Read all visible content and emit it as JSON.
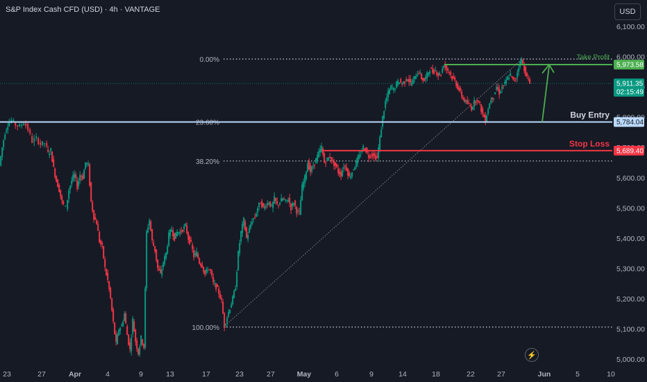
{
  "header": {
    "title": "S&P Index Cash CFD (USD) · 4h · VANTAGE"
  },
  "currency_button": "USD",
  "tools": {
    "bolt_icon": "lightning-icon"
  },
  "colors": {
    "background": "#161a25",
    "up": "#089981",
    "down": "#f23645",
    "take_profit": "#4caf50",
    "buy_entry": "#bbd9fb",
    "stop_loss": "#f23645",
    "last_price": "#089981"
  },
  "chart_data": {
    "type": "candlestick",
    "timeframe": "4h",
    "ylim": [
      4990,
      6140
    ],
    "y_ticks": [
      5000,
      5100,
      5200,
      5300,
      5400,
      5500,
      5600,
      5700,
      5800,
      5900,
      6000,
      6100
    ],
    "y_tick_labels": [
      "5,000.00",
      "5,100.00",
      "5,200.00",
      "5,300.00",
      "5,400.00",
      "5,500.00",
      "5,600.00",
      "5,700.00",
      "5,800.00",
      "5,900.00",
      "6,000.00",
      "6,100.00"
    ],
    "x_tick_labels": [
      "23",
      "27",
      "Apr",
      "4",
      "9",
      "13",
      "17",
      "23",
      "27",
      "May",
      "6",
      "9",
      "14",
      "18",
      "22",
      "27",
      "Jun",
      "5",
      "10"
    ],
    "price_tags": [
      {
        "label": "5,973.58",
        "value": 5973.58,
        "color": "#4caf50"
      },
      {
        "label": "5,911.35",
        "sub": "02:15:49",
        "value": 5911.35,
        "color": "#089981"
      },
      {
        "label": "5,784.04",
        "value": 5784.04,
        "color": "#bbd9fb"
      },
      {
        "label": "5,689.40",
        "value": 5689.4,
        "color": "#f23645"
      }
    ],
    "annotations": {
      "take_profit": {
        "label": "Take Profit",
        "value": 5973.58
      },
      "buy_entry": {
        "label": "Buy Entry",
        "value": 5784.04
      },
      "stop_loss": {
        "label": "Stop Loss",
        "value": 5689.4
      }
    },
    "fib_levels": [
      {
        "label": "0.00%",
        "value": 5992
      },
      {
        "label": "23.60%",
        "value": 5784
      },
      {
        "label": "38.20%",
        "value": 5655
      },
      {
        "label": "100.00%",
        "value": 5106
      }
    ],
    "path": [
      [
        0,
        5640
      ],
      [
        4,
        5700
      ],
      [
        8,
        5750
      ],
      [
        12,
        5775
      ],
      [
        18,
        5790
      ],
      [
        24,
        5775
      ],
      [
        30,
        5770
      ],
      [
        36,
        5785
      ],
      [
        42,
        5760
      ],
      [
        48,
        5720
      ],
      [
        54,
        5730
      ],
      [
        60,
        5710
      ],
      [
        66,
        5715
      ],
      [
        70,
        5680
      ],
      [
        74,
        5690
      ],
      [
        78,
        5630
      ],
      [
        82,
        5590
      ],
      [
        86,
        5560
      ],
      [
        90,
        5520
      ],
      [
        96,
        5500
      ],
      [
        100,
        5560
      ],
      [
        104,
        5590
      ],
      [
        108,
        5610
      ],
      [
        112,
        5570
      ],
      [
        116,
        5610
      ],
      [
        120,
        5600
      ],
      [
        124,
        5650
      ],
      [
        128,
        5640
      ],
      [
        132,
        5520
      ],
      [
        136,
        5470
      ],
      [
        140,
        5450
      ],
      [
        144,
        5390
      ],
      [
        148,
        5370
      ],
      [
        152,
        5300
      ],
      [
        156,
        5260
      ],
      [
        160,
        5200
      ],
      [
        164,
        5120
      ],
      [
        168,
        5050
      ],
      [
        172,
        5100
      ],
      [
        176,
        5110
      ],
      [
        180,
        5150
      ],
      [
        184,
        5080
      ],
      [
        188,
        5030
      ],
      [
        192,
        5130
      ],
      [
        196,
        5060
      ],
      [
        200,
        5020
      ],
      [
        204,
        5070
      ],
      [
        208,
        5040
      ],
      [
        212,
        5420
      ],
      [
        216,
        5460
      ],
      [
        220,
        5390
      ],
      [
        224,
        5360
      ],
      [
        228,
        5300
      ],
      [
        232,
        5280
      ],
      [
        236,
        5320
      ],
      [
        240,
        5350
      ],
      [
        244,
        5410
      ],
      [
        248,
        5430
      ],
      [
        252,
        5400
      ],
      [
        256,
        5420
      ],
      [
        260,
        5420
      ],
      [
        264,
        5430
      ],
      [
        268,
        5440
      ],
      [
        272,
        5400
      ],
      [
        276,
        5380
      ],
      [
        280,
        5340
      ],
      [
        284,
        5350
      ],
      [
        288,
        5320
      ],
      [
        292,
        5310
      ],
      [
        296,
        5280
      ],
      [
        300,
        5300
      ],
      [
        304,
        5290
      ],
      [
        308,
        5250
      ],
      [
        312,
        5240
      ],
      [
        316,
        5220
      ],
      [
        320,
        5190
      ],
      [
        324,
        5110
      ],
      [
        328,
        5140
      ],
      [
        332,
        5170
      ],
      [
        336,
        5200
      ],
      [
        340,
        5240
      ],
      [
        344,
        5350
      ],
      [
        348,
        5420
      ],
      [
        352,
        5460
      ],
      [
        356,
        5400
      ],
      [
        360,
        5430
      ],
      [
        364,
        5460
      ],
      [
        368,
        5470
      ],
      [
        372,
        5500
      ],
      [
        376,
        5520
      ],
      [
        380,
        5500
      ],
      [
        384,
        5510
      ],
      [
        388,
        5520
      ],
      [
        392,
        5500
      ],
      [
        396,
        5530
      ],
      [
        400,
        5510
      ],
      [
        404,
        5520
      ],
      [
        408,
        5530
      ],
      [
        412,
        5520
      ],
      [
        416,
        5530
      ],
      [
        420,
        5500
      ],
      [
        424,
        5520
      ],
      [
        428,
        5490
      ],
      [
        432,
        5480
      ],
      [
        436,
        5570
      ],
      [
        440,
        5600
      ],
      [
        444,
        5650
      ],
      [
        448,
        5620
      ],
      [
        452,
        5640
      ],
      [
        456,
        5660
      ],
      [
        460,
        5680
      ],
      [
        464,
        5700
      ],
      [
        468,
        5650
      ],
      [
        472,
        5660
      ],
      [
        476,
        5670
      ],
      [
        480,
        5650
      ],
      [
        484,
        5640
      ],
      [
        488,
        5620
      ],
      [
        492,
        5610
      ],
      [
        496,
        5640
      ],
      [
        500,
        5630
      ],
      [
        504,
        5600
      ],
      [
        508,
        5620
      ],
      [
        512,
        5640
      ],
      [
        516,
        5660
      ],
      [
        520,
        5680
      ],
      [
        524,
        5700
      ],
      [
        528,
        5690
      ],
      [
        532,
        5670
      ],
      [
        536,
        5680
      ],
      [
        540,
        5670
      ],
      [
        544,
        5665
      ],
      [
        548,
        5730
      ],
      [
        552,
        5800
      ],
      [
        556,
        5850
      ],
      [
        560,
        5880
      ],
      [
        564,
        5900
      ],
      [
        568,
        5890
      ],
      [
        572,
        5910
      ],
      [
        576,
        5920
      ],
      [
        580,
        5910
      ],
      [
        584,
        5920
      ],
      [
        588,
        5930
      ],
      [
        592,
        5910
      ],
      [
        596,
        5920
      ],
      [
        600,
        5940
      ],
      [
        604,
        5950
      ],
      [
        608,
        5930
      ],
      [
        612,
        5920
      ],
      [
        616,
        5940
      ],
      [
        620,
        5960
      ],
      [
        624,
        5950
      ],
      [
        628,
        5955
      ],
      [
        632,
        5940
      ],
      [
        636,
        5945
      ],
      [
        640,
        5975
      ],
      [
        644,
        5960
      ],
      [
        648,
        5950
      ],
      [
        652,
        5930
      ],
      [
        656,
        5920
      ],
      [
        660,
        5900
      ],
      [
        664,
        5880
      ],
      [
        668,
        5860
      ],
      [
        672,
        5850
      ],
      [
        676,
        5840
      ],
      [
        680,
        5830
      ],
      [
        684,
        5850
      ],
      [
        688,
        5860
      ],
      [
        692,
        5840
      ],
      [
        696,
        5810
      ],
      [
        700,
        5790
      ],
      [
        704,
        5830
      ],
      [
        708,
        5860
      ],
      [
        712,
        5870
      ],
      [
        716,
        5900
      ],
      [
        720,
        5880
      ],
      [
        724,
        5900
      ],
      [
        728,
        5910
      ],
      [
        732,
        5930
      ],
      [
        736,
        5940
      ],
      [
        740,
        5920
      ],
      [
        744,
        5930
      ],
      [
        748,
        5970
      ],
      [
        752,
        5990
      ],
      [
        756,
        5960
      ],
      [
        760,
        5930
      ],
      [
        764,
        5911
      ]
    ]
  }
}
